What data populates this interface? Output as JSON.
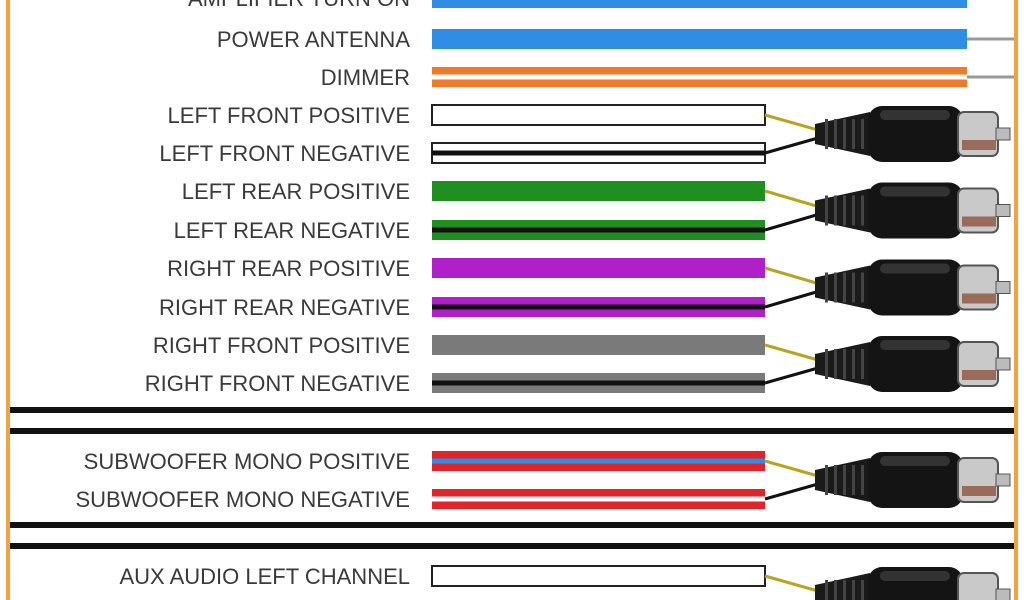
{
  "colors": {
    "frame": "#f4a23a",
    "blue": "#2f8de4",
    "orange": "#f07a2a",
    "green": "#1f8f1f",
    "purple": "#b020c8",
    "gray": "#7a7a7a",
    "red": "#e0242a",
    "white": "#ffffff",
    "black": "#111111",
    "lead_positive": "#b8a420",
    "lead_negative": "#111111"
  },
  "wires": [
    {
      "label": "AMPLIFIER TURN ON",
      "color": "blue",
      "stripe": null,
      "end": "bare"
    },
    {
      "label": "POWER ANTENNA",
      "color": "blue",
      "stripe": null,
      "end": "bare"
    },
    {
      "label": "DIMMER",
      "color": "orange",
      "stripe": "white",
      "end": "bare"
    },
    {
      "label": "LEFT FRONT POSITIVE",
      "color": "white",
      "stripe": null,
      "end": "rca"
    },
    {
      "label": "LEFT FRONT NEGATIVE",
      "color": "white",
      "stripe": "black",
      "end": "rca"
    },
    {
      "label": "LEFT REAR POSITIVE",
      "color": "green",
      "stripe": null,
      "end": "rca"
    },
    {
      "label": "LEFT REAR NEGATIVE",
      "color": "green",
      "stripe": "black",
      "end": "rca"
    },
    {
      "label": "RIGHT REAR POSITIVE",
      "color": "purple",
      "stripe": null,
      "end": "rca"
    },
    {
      "label": "RIGHT REAR NEGATIVE",
      "color": "purple",
      "stripe": "black",
      "end": "rca"
    },
    {
      "label": "RIGHT FRONT POSITIVE",
      "color": "gray",
      "stripe": null,
      "end": "rca"
    },
    {
      "label": "RIGHT FRONT NEGATIVE",
      "color": "gray",
      "stripe": "black",
      "end": "rca"
    },
    {
      "label": "SUBWOOFER MONO POSITIVE",
      "color": "red",
      "stripe": "blue",
      "end": "rca"
    },
    {
      "label": "SUBWOOFER MONO NEGATIVE",
      "color": "red",
      "stripe": "white",
      "end": "rca"
    },
    {
      "label": "AUX AUDIO LEFT CHANNEL",
      "color": "white",
      "stripe": null,
      "end": "rca"
    }
  ]
}
